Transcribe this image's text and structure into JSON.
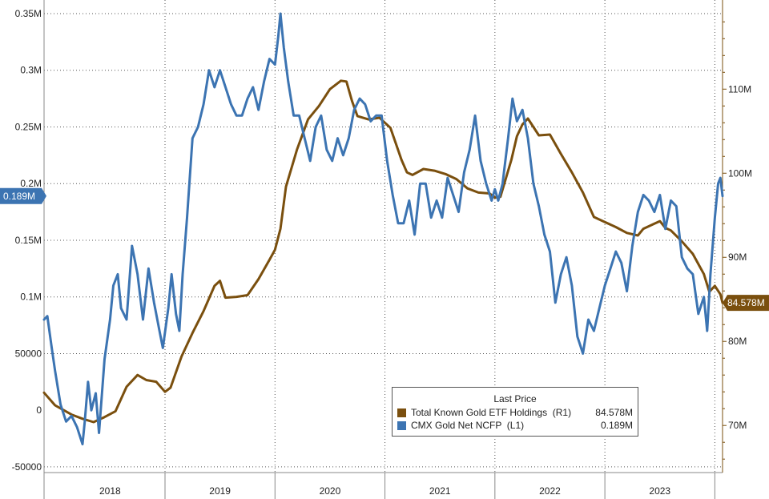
{
  "chart_data": {
    "type": "line",
    "title": "",
    "x_labels": [
      "2018",
      "2019",
      "2020",
      "2021",
      "2022",
      "2023"
    ],
    "left_axis": {
      "ticks": [
        {
          "value": 0.35,
          "label": "0.35M"
        },
        {
          "value": 0.3,
          "label": "0.3M"
        },
        {
          "value": 0.25,
          "label": "0.25M"
        },
        {
          "value": 0.2,
          "label": "0.2M"
        },
        {
          "value": 0.15,
          "label": "0.15M"
        },
        {
          "value": 0.1,
          "label": "0.1M"
        },
        {
          "value": 0.05,
          "label": "50000"
        },
        {
          "value": 0,
          "label": "0"
        },
        {
          "value": -0.05,
          "label": "-50000"
        }
      ],
      "ylim": [
        -0.055,
        0.362
      ],
      "unit": "M"
    },
    "right_axis": {
      "ticks": [
        {
          "value": 110,
          "label": "110M"
        },
        {
          "value": 100,
          "label": "100M"
        },
        {
          "value": 90,
          "label": "90M"
        },
        {
          "value": 80,
          "label": "80M"
        },
        {
          "value": 70,
          "label": "70M"
        }
      ],
      "ylim": [
        64.4,
        120.6
      ],
      "unit": "M"
    },
    "xlim": [
      2017.9,
      2024.07
    ],
    "grid": true,
    "legend": {
      "title": "Last Price",
      "placement": "bottom-center"
    },
    "series": [
      {
        "name": "Total Known Gold ETF Holdings  (R1)",
        "last_value": "84.578M",
        "axis": "right",
        "color": "#7a4f0e",
        "points": [
          [
            2017.9,
            73.9
          ],
          [
            2018.0,
            72.4
          ],
          [
            2018.15,
            71.3
          ],
          [
            2018.25,
            70.8
          ],
          [
            2018.35,
            70.4
          ],
          [
            2018.45,
            71.0
          ],
          [
            2018.55,
            71.7
          ],
          [
            2018.65,
            74.6
          ],
          [
            2018.75,
            76.0
          ],
          [
            2018.83,
            75.4
          ],
          [
            2018.92,
            75.2
          ],
          [
            2019.0,
            74.0
          ],
          [
            2019.05,
            74.5
          ],
          [
            2019.15,
            78.2
          ],
          [
            2019.25,
            81.0
          ],
          [
            2019.35,
            83.6
          ],
          [
            2019.45,
            86.6
          ],
          [
            2019.5,
            87.2
          ],
          [
            2019.55,
            85.2
          ],
          [
            2019.65,
            85.3
          ],
          [
            2019.75,
            85.5
          ],
          [
            2019.85,
            87.4
          ],
          [
            2019.95,
            89.7
          ],
          [
            2020.0,
            90.9
          ],
          [
            2020.05,
            93.4
          ],
          [
            2020.1,
            98.4
          ],
          [
            2020.2,
            102.8
          ],
          [
            2020.3,
            106.4
          ],
          [
            2020.4,
            108.0
          ],
          [
            2020.5,
            110.0
          ],
          [
            2020.6,
            111.0
          ],
          [
            2020.65,
            110.9
          ],
          [
            2020.7,
            108.6
          ],
          [
            2020.75,
            106.8
          ],
          [
            2020.85,
            106.4
          ],
          [
            2020.95,
            106.6
          ],
          [
            2021.0,
            106.0
          ],
          [
            2021.05,
            105.4
          ],
          [
            2021.1,
            103.5
          ],
          [
            2021.15,
            101.6
          ],
          [
            2021.2,
            100.1
          ],
          [
            2021.25,
            99.8
          ],
          [
            2021.35,
            100.5
          ],
          [
            2021.45,
            100.3
          ],
          [
            2021.55,
            99.9
          ],
          [
            2021.65,
            99.3
          ],
          [
            2021.75,
            98.2
          ],
          [
            2021.85,
            97.7
          ],
          [
            2021.95,
            97.6
          ],
          [
            2022.0,
            97.1
          ],
          [
            2022.05,
            97.2
          ],
          [
            2022.15,
            101.6
          ],
          [
            2022.2,
            104.4
          ],
          [
            2022.25,
            105.8
          ],
          [
            2022.3,
            106.5
          ],
          [
            2022.4,
            104.5
          ],
          [
            2022.5,
            104.6
          ],
          [
            2022.6,
            102.3
          ],
          [
            2022.7,
            100.1
          ],
          [
            2022.8,
            97.7
          ],
          [
            2022.9,
            94.8
          ],
          [
            2023.0,
            94.2
          ],
          [
            2023.1,
            93.6
          ],
          [
            2023.2,
            92.9
          ],
          [
            2023.3,
            92.6
          ],
          [
            2023.35,
            93.4
          ],
          [
            2023.45,
            94.0
          ],
          [
            2023.5,
            94.3
          ],
          [
            2023.55,
            93.5
          ],
          [
            2023.6,
            93.2
          ],
          [
            2023.7,
            91.9
          ],
          [
            2023.8,
            90.4
          ],
          [
            2023.85,
            89.2
          ],
          [
            2023.9,
            88.0
          ],
          [
            2023.95,
            85.9
          ],
          [
            2024.0,
            86.6
          ],
          [
            2024.05,
            85.6
          ],
          [
            2024.07,
            84.58
          ]
        ]
      },
      {
        "name": "CMX Gold Net NCFP  (L1)",
        "last_value": "0.189M",
        "axis": "left",
        "color": "#3c74b2",
        "points": [
          [
            2017.9,
            0.08
          ],
          [
            2017.93,
            0.083
          ],
          [
            2017.97,
            0.055
          ],
          [
            2018.0,
            0.035
          ],
          [
            2018.05,
            0.005
          ],
          [
            2018.1,
            -0.01
          ],
          [
            2018.15,
            -0.005
          ],
          [
            2018.2,
            -0.015
          ],
          [
            2018.25,
            -0.03
          ],
          [
            2018.27,
            -0.01
          ],
          [
            2018.3,
            0.025
          ],
          [
            2018.33,
            0.0
          ],
          [
            2018.37,
            0.015
          ],
          [
            2018.4,
            -0.02
          ],
          [
            2018.45,
            0.045
          ],
          [
            2018.5,
            0.08
          ],
          [
            2018.53,
            0.11
          ],
          [
            2018.57,
            0.12
          ],
          [
            2018.6,
            0.09
          ],
          [
            2018.65,
            0.08
          ],
          [
            2018.7,
            0.145
          ],
          [
            2018.75,
            0.12
          ],
          [
            2018.8,
            0.08
          ],
          [
            2018.85,
            0.125
          ],
          [
            2018.9,
            0.095
          ],
          [
            2018.95,
            0.07
          ],
          [
            2018.98,
            0.055
          ],
          [
            2019.03,
            0.09
          ],
          [
            2019.06,
            0.12
          ],
          [
            2019.1,
            0.085
          ],
          [
            2019.13,
            0.07
          ],
          [
            2019.16,
            0.12
          ],
          [
            2019.2,
            0.17
          ],
          [
            2019.25,
            0.24
          ],
          [
            2019.3,
            0.25
          ],
          [
            2019.35,
            0.27
          ],
          [
            2019.4,
            0.3
          ],
          [
            2019.45,
            0.285
          ],
          [
            2019.5,
            0.3
          ],
          [
            2019.55,
            0.285
          ],
          [
            2019.6,
            0.27
          ],
          [
            2019.65,
            0.26
          ],
          [
            2019.7,
            0.26
          ],
          [
            2019.75,
            0.275
          ],
          [
            2019.8,
            0.285
          ],
          [
            2019.85,
            0.265
          ],
          [
            2019.9,
            0.29
          ],
          [
            2019.95,
            0.31
          ],
          [
            2020.0,
            0.305
          ],
          [
            2020.03,
            0.33
          ],
          [
            2020.05,
            0.35
          ],
          [
            2020.08,
            0.32
          ],
          [
            2020.12,
            0.29
          ],
          [
            2020.17,
            0.26
          ],
          [
            2020.22,
            0.26
          ],
          [
            2020.27,
            0.24
          ],
          [
            2020.32,
            0.22
          ],
          [
            2020.37,
            0.25
          ],
          [
            2020.42,
            0.26
          ],
          [
            2020.47,
            0.23
          ],
          [
            2020.52,
            0.22
          ],
          [
            2020.57,
            0.24
          ],
          [
            2020.62,
            0.225
          ],
          [
            2020.67,
            0.24
          ],
          [
            2020.72,
            0.265
          ],
          [
            2020.77,
            0.275
          ],
          [
            2020.82,
            0.27
          ],
          [
            2020.87,
            0.255
          ],
          [
            2020.92,
            0.26
          ],
          [
            2020.97,
            0.26
          ],
          [
            2021.02,
            0.22
          ],
          [
            2021.07,
            0.19
          ],
          [
            2021.12,
            0.165
          ],
          [
            2021.17,
            0.165
          ],
          [
            2021.22,
            0.185
          ],
          [
            2021.27,
            0.155
          ],
          [
            2021.32,
            0.2
          ],
          [
            2021.37,
            0.2
          ],
          [
            2021.42,
            0.17
          ],
          [
            2021.47,
            0.185
          ],
          [
            2021.52,
            0.17
          ],
          [
            2021.57,
            0.205
          ],
          [
            2021.62,
            0.19
          ],
          [
            2021.67,
            0.175
          ],
          [
            2021.72,
            0.21
          ],
          [
            2021.77,
            0.23
          ],
          [
            2021.82,
            0.26
          ],
          [
            2021.87,
            0.22
          ],
          [
            2021.92,
            0.2
          ],
          [
            2021.97,
            0.185
          ],
          [
            2022.0,
            0.195
          ],
          [
            2022.03,
            0.185
          ],
          [
            2022.07,
            0.2
          ],
          [
            2022.12,
            0.24
          ],
          [
            2022.16,
            0.275
          ],
          [
            2022.2,
            0.255
          ],
          [
            2022.25,
            0.265
          ],
          [
            2022.3,
            0.24
          ],
          [
            2022.35,
            0.2
          ],
          [
            2022.4,
            0.18
          ],
          [
            2022.45,
            0.155
          ],
          [
            2022.5,
            0.14
          ],
          [
            2022.55,
            0.095
          ],
          [
            2022.6,
            0.12
          ],
          [
            2022.65,
            0.135
          ],
          [
            2022.7,
            0.11
          ],
          [
            2022.75,
            0.065
          ],
          [
            2022.8,
            0.05
          ],
          [
            2022.85,
            0.08
          ],
          [
            2022.9,
            0.07
          ],
          [
            2022.95,
            0.09
          ],
          [
            2023.0,
            0.11
          ],
          [
            2023.05,
            0.125
          ],
          [
            2023.1,
            0.14
          ],
          [
            2023.15,
            0.13
          ],
          [
            2023.2,
            0.105
          ],
          [
            2023.25,
            0.145
          ],
          [
            2023.3,
            0.175
          ],
          [
            2023.35,
            0.19
          ],
          [
            2023.4,
            0.185
          ],
          [
            2023.45,
            0.175
          ],
          [
            2023.5,
            0.19
          ],
          [
            2023.55,
            0.16
          ],
          [
            2023.6,
            0.185
          ],
          [
            2023.65,
            0.18
          ],
          [
            2023.7,
            0.135
          ],
          [
            2023.75,
            0.125
          ],
          [
            2023.8,
            0.12
          ],
          [
            2023.85,
            0.085
          ],
          [
            2023.9,
            0.1
          ],
          [
            2023.93,
            0.07
          ],
          [
            2023.96,
            0.12
          ],
          [
            2024.0,
            0.17
          ],
          [
            2024.03,
            0.2
          ],
          [
            2024.05,
            0.205
          ],
          [
            2024.07,
            0.189
          ]
        ]
      }
    ],
    "current_value_tags": [
      {
        "axis": "left",
        "value": 0.189,
        "label": "0.189M",
        "color": "#3c74b2"
      },
      {
        "axis": "right",
        "value": 84.578,
        "label": "84.578M",
        "color": "#7a4f0e"
      }
    ]
  }
}
